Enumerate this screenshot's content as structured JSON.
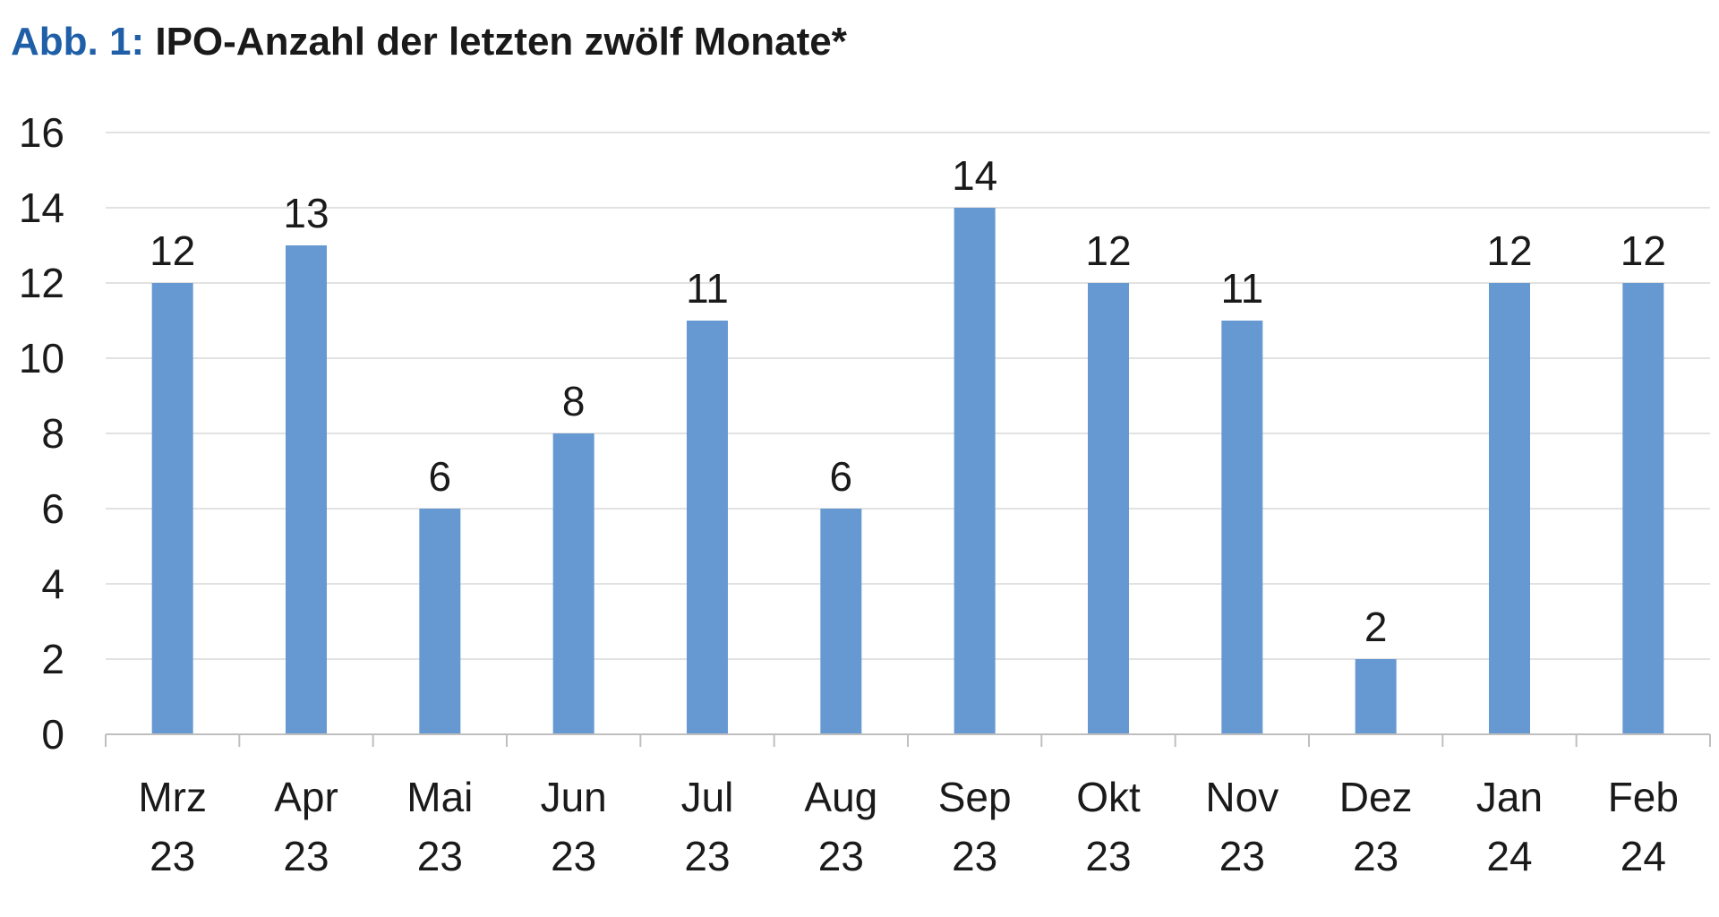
{
  "title": {
    "prefix": "Abb. 1:",
    "text": "IPO-Anzahl der letzten zwölf Monate*"
  },
  "colors": {
    "bar": "#6699d1",
    "title_prefix": "#1f5fa8",
    "grid": "#d9d9d9",
    "axis": "#bfbfbf",
    "text": "#1a1a1a"
  },
  "chart_data": {
    "type": "bar",
    "categories": [
      [
        "Mrz",
        "23"
      ],
      [
        "Apr",
        "23"
      ],
      [
        "Mai",
        "23"
      ],
      [
        "Jun",
        "23"
      ],
      [
        "Jul",
        "23"
      ],
      [
        "Aug",
        "23"
      ],
      [
        "Sep",
        "23"
      ],
      [
        "Okt",
        "23"
      ],
      [
        "Nov",
        "23"
      ],
      [
        "Dez",
        "23"
      ],
      [
        "Jan",
        "24"
      ],
      [
        "Feb",
        "24"
      ]
    ],
    "values": [
      12,
      13,
      6,
      8,
      11,
      6,
      14,
      12,
      11,
      2,
      12,
      12
    ],
    "yticks": [
      0,
      2,
      4,
      6,
      8,
      10,
      12,
      14,
      16
    ],
    "ylim": [
      0,
      16
    ],
    "grid": true,
    "legend": "none",
    "data_labels": true
  }
}
